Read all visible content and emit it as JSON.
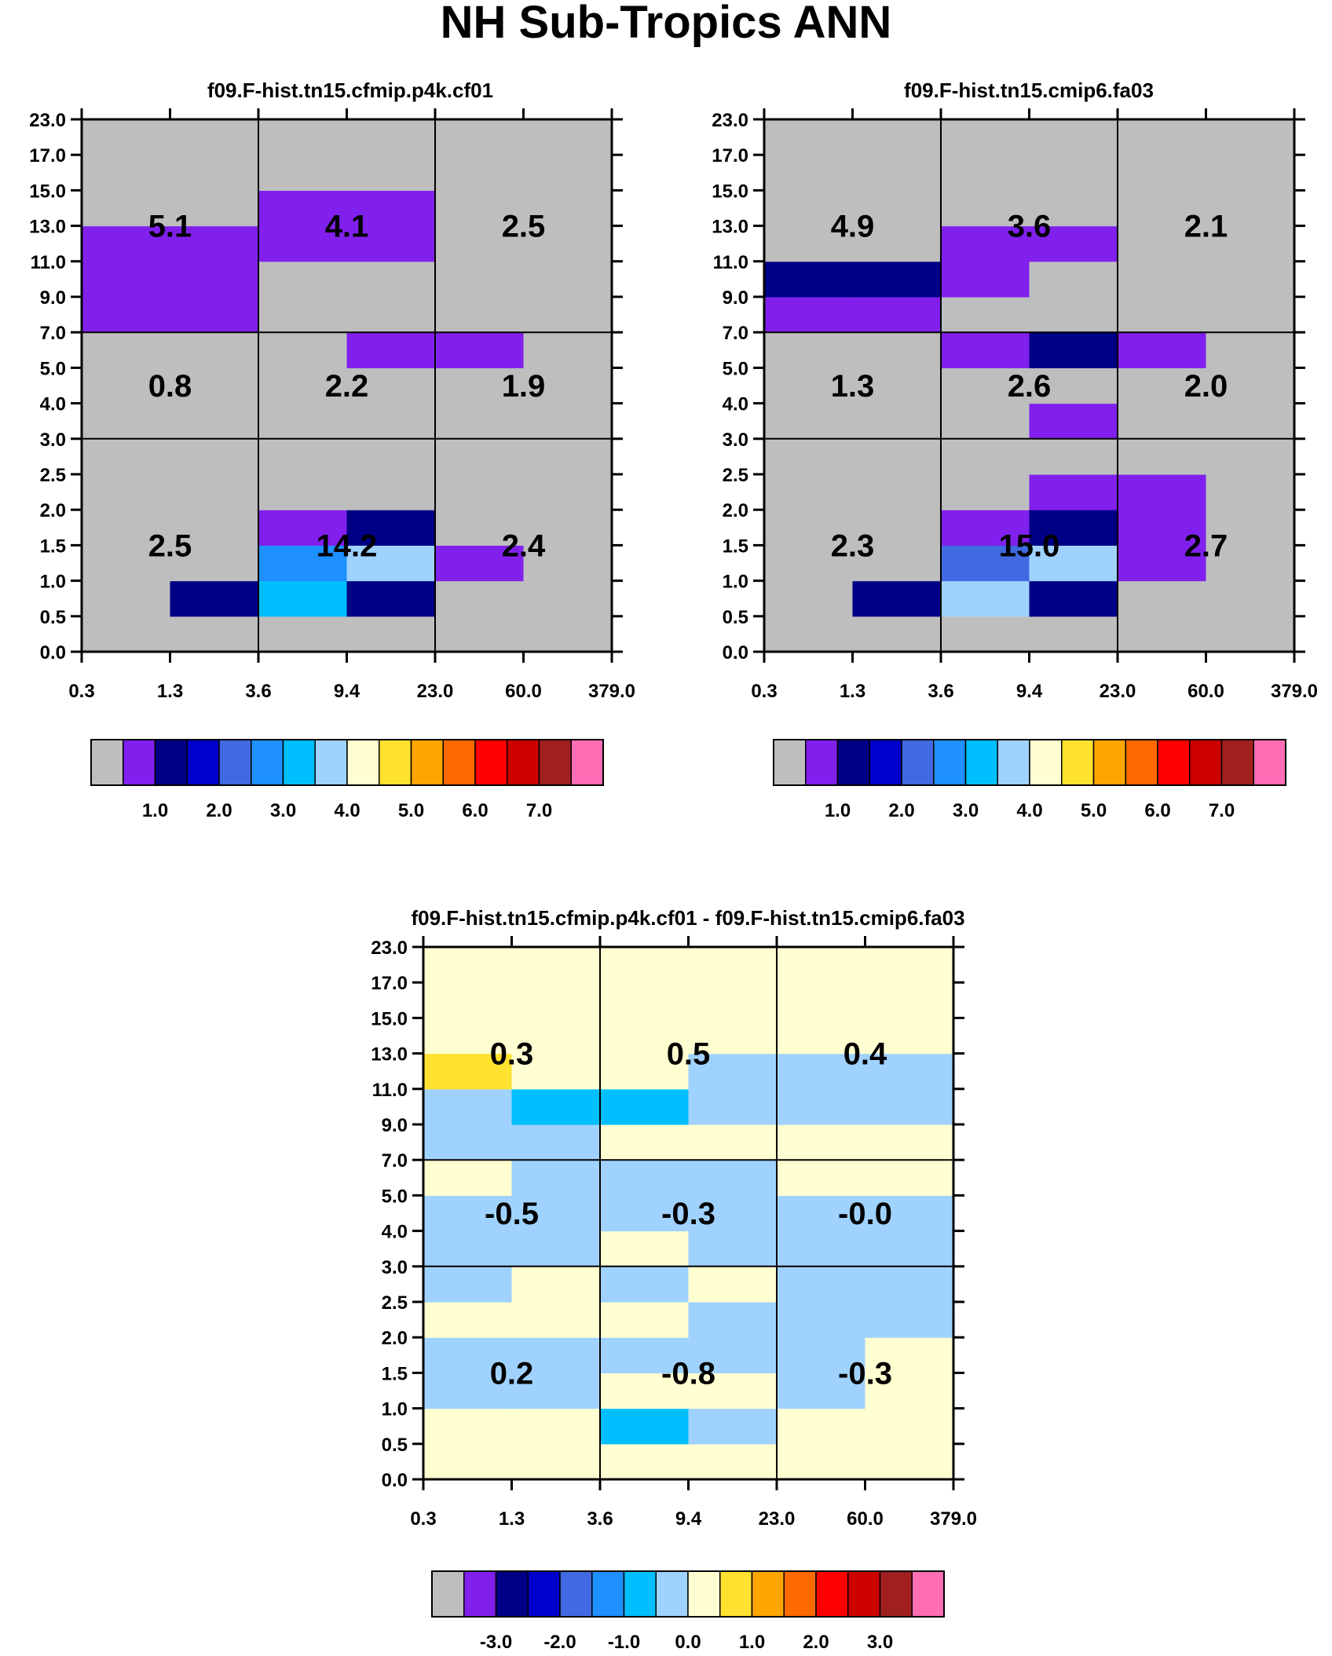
{
  "figure": {
    "title": "NH Sub-Tropics ANN"
  },
  "colormap": [
    "#bebebe",
    "#8120ed",
    "#000086",
    "#0000cc",
    "#4169e1",
    "#1e90ff",
    "#00bfff",
    "#a0d2ff",
    "#ffffd1",
    "#ffe12f",
    "#ffa500",
    "#ff6a00",
    "#ff0000",
    "#cd0000",
    "#a02020",
    "#ff6eb4"
  ],
  "chart_data": [
    {
      "type": "heatmap",
      "title": "f09.F-hist.tn15.cfmip.p4k.cf01",
      "x_ticks": [
        "0.3",
        "1.3",
        "3.6",
        "9.4",
        "23.0",
        "60.0",
        "379.0"
      ],
      "y_ticks": [
        "0.0",
        "0.5",
        "1.0",
        "1.5",
        "2.0",
        "2.5",
        "3.0",
        "4.0",
        "5.0",
        "7.0",
        "9.0",
        "11.0",
        "13.0",
        "15.0",
        "17.0",
        "23.0"
      ],
      "group_values": [
        [
          "2.5",
          "14.2",
          "2.4"
        ],
        [
          "0.8",
          "2.2",
          "1.9"
        ],
        [
          "5.1",
          "4.1",
          "2.5"
        ]
      ],
      "cells": [
        [
          0,
          0,
          0,
          0,
          0,
          0
        ],
        [
          0,
          2,
          6,
          2,
          0,
          0
        ],
        [
          0,
          0,
          5,
          7,
          1,
          0
        ],
        [
          0,
          0,
          1,
          2,
          0,
          0
        ],
        [
          0,
          0,
          0,
          0,
          0,
          0
        ],
        [
          0,
          0,
          0,
          0,
          0,
          0
        ],
        [
          0,
          0,
          0,
          0,
          0,
          0
        ],
        [
          0,
          0,
          0,
          0,
          0,
          0
        ],
        [
          0,
          0,
          0,
          1,
          1,
          0
        ],
        [
          1,
          1,
          0,
          0,
          0,
          0
        ],
        [
          1,
          1,
          0,
          0,
          0,
          0
        ],
        [
          1,
          1,
          1,
          1,
          0,
          0
        ],
        [
          0,
          0,
          1,
          1,
          0,
          0
        ],
        [
          0,
          0,
          0,
          0,
          0,
          0
        ],
        [
          0,
          0,
          0,
          0,
          0,
          0
        ]
      ],
      "colorbar": {
        "labels": [
          "1.0",
          "2.0",
          "3.0",
          "4.0",
          "5.0",
          "6.0",
          "7.0"
        ]
      }
    },
    {
      "type": "heatmap",
      "title": "f09.F-hist.tn15.cmip6.fa03",
      "x_ticks": [
        "0.3",
        "1.3",
        "3.6",
        "9.4",
        "23.0",
        "60.0",
        "379.0"
      ],
      "y_ticks": [
        "0.0",
        "0.5",
        "1.0",
        "1.5",
        "2.0",
        "2.5",
        "3.0",
        "4.0",
        "5.0",
        "7.0",
        "9.0",
        "11.0",
        "13.0",
        "15.0",
        "17.0",
        "23.0"
      ],
      "group_values": [
        [
          "2.3",
          "15.0",
          "2.7"
        ],
        [
          "1.3",
          "2.6",
          "2.0"
        ],
        [
          "4.9",
          "3.6",
          "2.1"
        ]
      ],
      "cells": [
        [
          0,
          0,
          0,
          0,
          0,
          0
        ],
        [
          0,
          2,
          7,
          2,
          0,
          0
        ],
        [
          0,
          0,
          4,
          7,
          1,
          0
        ],
        [
          0,
          0,
          1,
          2,
          1,
          0
        ],
        [
          0,
          0,
          0,
          1,
          1,
          0
        ],
        [
          0,
          0,
          0,
          0,
          0,
          0
        ],
        [
          0,
          0,
          0,
          1,
          0,
          0
        ],
        [
          0,
          0,
          0,
          0,
          0,
          0
        ],
        [
          0,
          0,
          1,
          2,
          1,
          0
        ],
        [
          1,
          1,
          0,
          0,
          0,
          0
        ],
        [
          2,
          2,
          1,
          0,
          0,
          0
        ],
        [
          0,
          0,
          1,
          1,
          0,
          0
        ],
        [
          0,
          0,
          0,
          0,
          0,
          0
        ],
        [
          0,
          0,
          0,
          0,
          0,
          0
        ],
        [
          0,
          0,
          0,
          0,
          0,
          0
        ]
      ],
      "colorbar": {
        "labels": [
          "1.0",
          "2.0",
          "3.0",
          "4.0",
          "5.0",
          "6.0",
          "7.0"
        ]
      }
    },
    {
      "type": "heatmap",
      "title": "f09.F-hist.tn15.cfmip.p4k.cf01 - f09.F-hist.tn15.cmip6.fa03",
      "x_ticks": [
        "0.3",
        "1.3",
        "3.6",
        "9.4",
        "23.0",
        "60.0",
        "379.0"
      ],
      "y_ticks": [
        "0.0",
        "0.5",
        "1.0",
        "1.5",
        "2.0",
        "2.5",
        "3.0",
        "4.0",
        "5.0",
        "7.0",
        "9.0",
        "11.0",
        "13.0",
        "15.0",
        "17.0",
        "23.0"
      ],
      "group_values": [
        [
          "0.2",
          "-0.8",
          "-0.3"
        ],
        [
          "-0.5",
          "-0.3",
          "-0.0"
        ],
        [
          "0.3",
          "0.5",
          "0.4"
        ]
      ],
      "cells": [
        [
          8,
          8,
          8,
          8,
          8,
          8
        ],
        [
          8,
          8,
          6,
          7,
          8,
          8
        ],
        [
          7,
          7,
          8,
          8,
          7,
          8
        ],
        [
          7,
          7,
          7,
          7,
          7,
          8
        ],
        [
          8,
          8,
          8,
          7,
          7,
          7
        ],
        [
          7,
          8,
          7,
          8,
          7,
          7
        ],
        [
          7,
          7,
          8,
          7,
          7,
          7
        ],
        [
          7,
          7,
          7,
          7,
          7,
          7
        ],
        [
          8,
          7,
          7,
          7,
          8,
          8
        ],
        [
          7,
          7,
          8,
          8,
          8,
          8
        ],
        [
          7,
          6,
          6,
          7,
          7,
          7
        ],
        [
          9,
          8,
          8,
          7,
          7,
          7
        ],
        [
          8,
          8,
          8,
          8,
          8,
          8
        ],
        [
          8,
          8,
          8,
          8,
          8,
          8
        ],
        [
          8,
          8,
          8,
          8,
          8,
          8
        ]
      ],
      "colorbar": {
        "labels": [
          "-3.0",
          "-2.0",
          "-1.0",
          "0.0",
          "1.0",
          "2.0",
          "3.0"
        ]
      }
    }
  ]
}
